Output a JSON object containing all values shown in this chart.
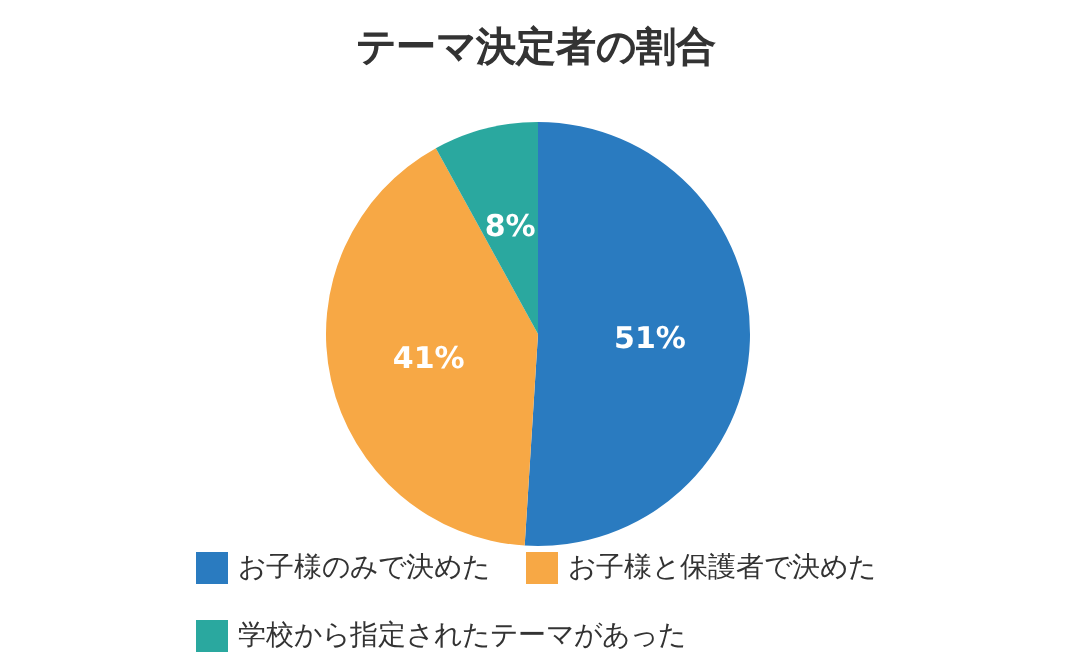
{
  "chart_data": {
    "type": "pie",
    "title": "テーマ決定者の割合",
    "categories": [
      "お子様のみで決めた",
      "お子様と保護者で決めた",
      "学校から指定されたテーマがあった"
    ],
    "values": [
      51,
      41,
      8
    ],
    "value_labels": [
      "51%",
      "41%",
      "8%"
    ],
    "colors": [
      "#2a7bc0",
      "#f7a845",
      "#2aa89f"
    ],
    "legend": "bottom"
  }
}
